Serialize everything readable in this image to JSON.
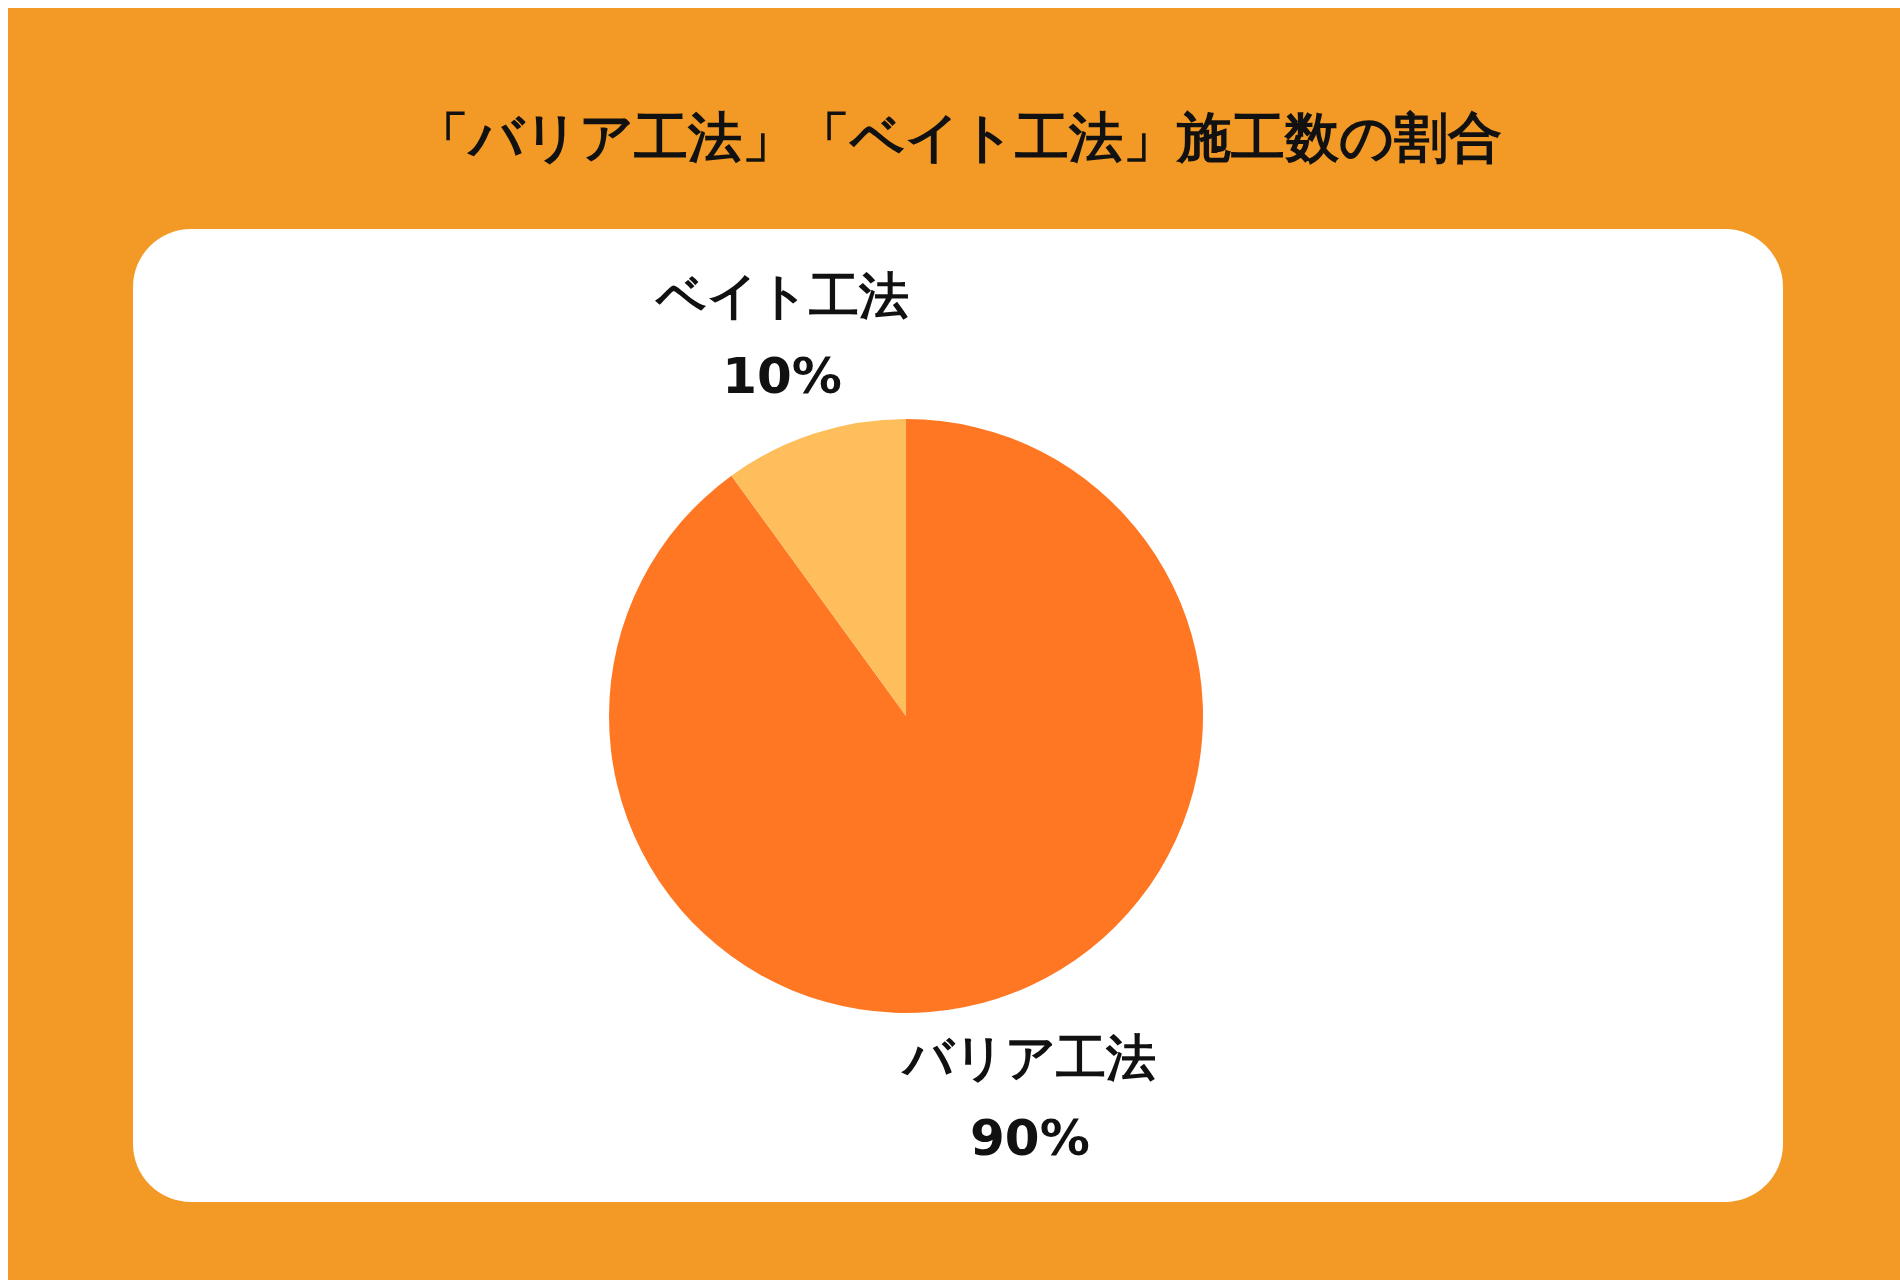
{
  "chart_data": {
    "type": "pie",
    "title": "「バリア工法」「ベイト工法」施工数の割合",
    "categories": [
      "バリア工法",
      "ベイト工法"
    ],
    "values": [
      90,
      10
    ],
    "colors": [
      "#ff7722",
      "#ffbe5c"
    ],
    "value_labels": [
      "90%",
      "10%"
    ],
    "legend": false
  }
}
